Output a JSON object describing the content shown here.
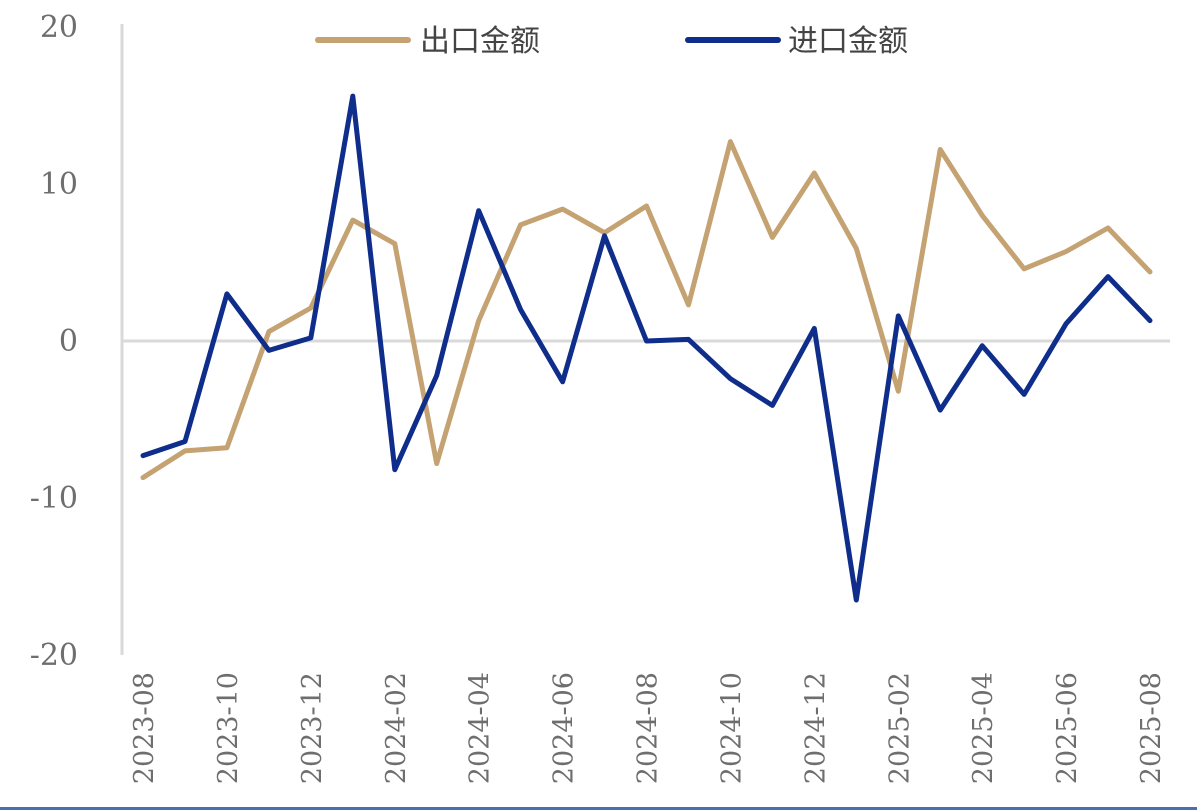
{
  "chart_data": {
    "type": "line",
    "x": [
      "2023-08",
      "2023-09",
      "2023-10",
      "2023-11",
      "2023-12",
      "2024-01",
      "2024-02",
      "2024-03",
      "2024-04",
      "2024-05",
      "2024-06",
      "2024-07",
      "2024-08",
      "2024-09",
      "2024-10",
      "2024-11",
      "2024-12",
      "2025-01",
      "2025-02",
      "2025-03",
      "2025-04",
      "2025-05",
      "2025-06",
      "2025-07",
      "2025-08"
    ],
    "x_tick_labels": [
      "2023-08",
      "2023-10",
      "2023-12",
      "2024-02",
      "2024-04",
      "2024-06",
      "2024-08",
      "2024-10",
      "2024-12",
      "2025-02",
      "2025-04",
      "2025-06",
      "2025-08"
    ],
    "series": [
      {
        "name": "出口金额",
        "color": "#c4a272",
        "values": [
          -8.7,
          -7.0,
          -6.8,
          0.6,
          2.1,
          7.7,
          6.2,
          -7.8,
          1.3,
          7.4,
          8.4,
          6.9,
          8.6,
          2.3,
          12.7,
          6.6,
          10.7,
          5.9,
          -3.2,
          12.2,
          8.0,
          4.6,
          5.7,
          7.2,
          4.4
        ]
      },
      {
        "name": "进口金额",
        "color": "#0f2d8a",
        "values": [
          -7.3,
          -6.4,
          3.0,
          -0.6,
          0.2,
          15.6,
          -8.2,
          -2.2,
          8.3,
          2.0,
          -2.6,
          6.7,
          0.0,
          0.1,
          -2.4,
          -4.1,
          0.8,
          -16.5,
          1.6,
          -4.4,
          -0.3,
          -3.4,
          1.1,
          4.1,
          1.3
        ]
      }
    ],
    "y_tick_labels": [
      "20",
      "10",
      "0",
      "-10",
      "-20"
    ],
    "ylim": [
      -20,
      20
    ],
    "title": "",
    "xlabel": "",
    "ylabel": "",
    "legend_position": "top",
    "grid": false,
    "zero_line_color": "#d9d9d9",
    "axis_color": "#d9d9d9",
    "tick_color": "#6e6e6e",
    "bottom_rule_color": "#4a6fb0"
  }
}
